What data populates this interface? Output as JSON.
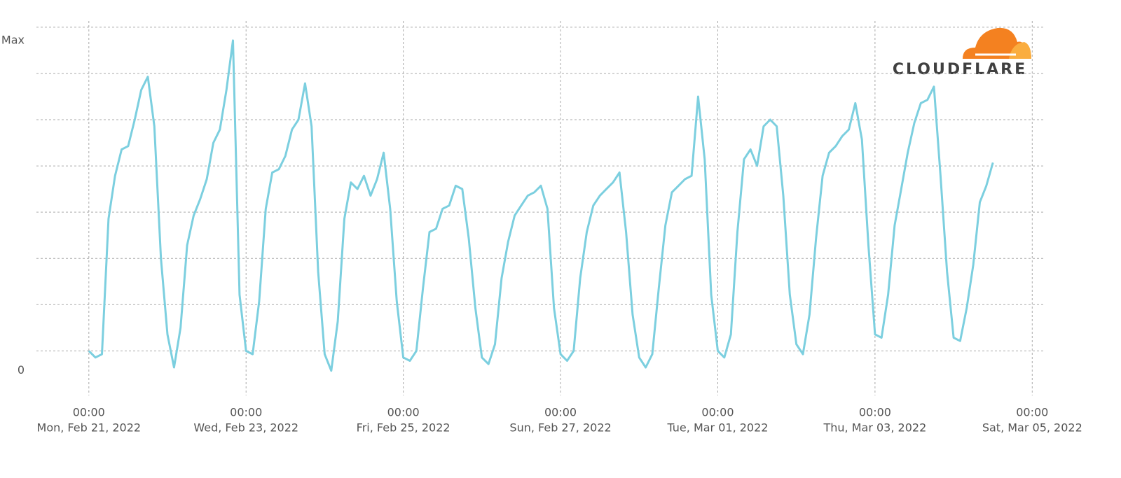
{
  "chart_data": {
    "type": "line",
    "logo": "CLOUDFLARE",
    "x": [
      "2022-02-21T00:00",
      "2022-02-21T02:00",
      "2022-02-21T04:00",
      "2022-02-21T06:00",
      "2022-02-21T08:00",
      "2022-02-21T10:00",
      "2022-02-21T12:00",
      "2022-02-21T14:00",
      "2022-02-21T16:00",
      "2022-02-21T18:00",
      "2022-02-21T20:00",
      "2022-02-21T22:00",
      "2022-02-22T00:00",
      "2022-02-22T02:00",
      "2022-02-22T04:00",
      "2022-02-22T06:00",
      "2022-02-22T08:00",
      "2022-02-22T10:00",
      "2022-02-22T12:00",
      "2022-02-22T14:00",
      "2022-02-22T16:00",
      "2022-02-22T18:00",
      "2022-02-22T20:00",
      "2022-02-22T22:00",
      "2022-02-23T00:00",
      "2022-02-23T02:00",
      "2022-02-23T04:00",
      "2022-02-23T06:00",
      "2022-02-23T08:00",
      "2022-02-23T10:00",
      "2022-02-23T12:00",
      "2022-02-23T14:00",
      "2022-02-23T16:00",
      "2022-02-23T18:00",
      "2022-02-23T20:00",
      "2022-02-23T22:00",
      "2022-02-24T00:00",
      "2022-02-24T02:00",
      "2022-02-24T04:00",
      "2022-02-24T06:00",
      "2022-02-24T08:00",
      "2022-02-24T10:00",
      "2022-02-24T12:00",
      "2022-02-24T14:00",
      "2022-02-24T16:00",
      "2022-02-24T18:00",
      "2022-02-24T20:00",
      "2022-02-24T22:00",
      "2022-02-25T00:00",
      "2022-02-25T02:00",
      "2022-02-25T04:00",
      "2022-02-25T06:00",
      "2022-02-25T08:00",
      "2022-02-25T10:00",
      "2022-02-25T12:00",
      "2022-02-25T14:00",
      "2022-02-25T16:00",
      "2022-02-25T18:00",
      "2022-02-25T20:00",
      "2022-02-25T22:00",
      "2022-02-26T00:00",
      "2022-02-26T02:00",
      "2022-02-26T04:00",
      "2022-02-26T06:00",
      "2022-02-26T08:00",
      "2022-02-26T10:00",
      "2022-02-26T12:00",
      "2022-02-26T14:00",
      "2022-02-26T16:00",
      "2022-02-26T18:00",
      "2022-02-26T20:00",
      "2022-02-26T22:00",
      "2022-02-27T00:00",
      "2022-02-27T02:00",
      "2022-02-27T04:00",
      "2022-02-27T06:00",
      "2022-02-27T08:00",
      "2022-02-27T10:00",
      "2022-02-27T12:00",
      "2022-02-27T14:00",
      "2022-02-27T16:00",
      "2022-02-27T18:00",
      "2022-02-27T20:00",
      "2022-02-27T22:00",
      "2022-02-28T00:00",
      "2022-02-28T02:00",
      "2022-02-28T04:00",
      "2022-02-28T06:00",
      "2022-02-28T08:00",
      "2022-02-28T10:00",
      "2022-02-28T12:00",
      "2022-02-28T14:00",
      "2022-02-28T16:00",
      "2022-02-28T18:00",
      "2022-02-28T20:00",
      "2022-02-28T22:00",
      "2022-03-01T00:00",
      "2022-03-01T02:00",
      "2022-03-01T04:00",
      "2022-03-01T06:00",
      "2022-03-01T08:00",
      "2022-03-01T10:00",
      "2022-03-01T12:00",
      "2022-03-01T14:00",
      "2022-03-01T16:00",
      "2022-03-01T18:00",
      "2022-03-01T20:00",
      "2022-03-01T22:00",
      "2022-03-02T00:00",
      "2022-03-02T02:00",
      "2022-03-02T04:00",
      "2022-03-02T06:00",
      "2022-03-02T08:00",
      "2022-03-02T10:00",
      "2022-03-02T12:00",
      "2022-03-02T14:00",
      "2022-03-02T16:00",
      "2022-03-02T18:00",
      "2022-03-02T20:00",
      "2022-03-02T22:00",
      "2022-03-03T00:00",
      "2022-03-03T02:00",
      "2022-03-03T04:00",
      "2022-03-03T06:00",
      "2022-03-03T08:00",
      "2022-03-03T10:00",
      "2022-03-03T12:00",
      "2022-03-03T14:00",
      "2022-03-03T16:00",
      "2022-03-03T18:00",
      "2022-03-03T20:00",
      "2022-03-03T22:00",
      "2022-03-04T00:00",
      "2022-03-04T02:00",
      "2022-03-04T04:00",
      "2022-03-04T06:00",
      "2022-03-04T08:00",
      "2022-03-04T10:00",
      "2022-03-04T12:00"
    ],
    "series": [
      {
        "color": "#7ccfdf",
        "values": [
          6,
          4,
          5,
          46,
          59,
          67,
          68,
          76,
          85,
          89,
          74,
          34,
          11,
          1,
          13,
          38,
          47,
          52,
          58,
          69,
          73,
          85,
          100,
          23,
          6,
          5,
          21,
          49,
          60,
          61,
          65,
          73,
          76,
          87,
          74,
          30,
          5,
          0,
          15,
          46,
          57,
          55,
          59,
          53,
          58,
          66,
          49,
          21,
          4,
          3,
          6,
          25,
          42,
          43,
          49,
          50,
          56,
          55,
          40,
          19,
          4,
          2,
          8,
          28,
          39,
          47,
          50,
          53,
          54,
          56,
          49,
          19,
          5,
          3,
          6,
          28,
          42,
          50,
          53,
          55,
          57,
          60,
          42,
          17,
          4,
          1,
          5,
          25,
          44,
          54,
          56,
          58,
          59,
          83,
          64,
          23,
          6,
          4,
          11,
          42,
          64,
          67,
          62,
          74,
          76,
          74,
          53,
          23,
          8,
          5,
          17,
          40,
          59,
          66,
          68,
          71,
          73,
          81,
          70,
          38,
          11,
          10,
          23,
          44,
          55,
          66,
          75,
          81,
          82,
          86,
          59,
          30,
          10,
          9,
          19,
          32,
          51,
          56,
          63
        ]
      }
    ],
    "xlim": [
      "2022-02-20T08:00",
      "2022-03-05T04:00"
    ],
    "xticks": [
      {
        "value": "2022-02-21T00:00",
        "label": [
          "00:00",
          "Mon, Feb 21, 2022"
        ]
      },
      {
        "value": "2022-02-23T00:00",
        "label": [
          "00:00",
          "Wed, Feb 23, 2022"
        ]
      },
      {
        "value": "2022-02-25T00:00",
        "label": [
          "00:00",
          "Fri, Feb 25, 2022"
        ]
      },
      {
        "value": "2022-02-27T00:00",
        "label": [
          "00:00",
          "Sun, Feb 27, 2022"
        ]
      },
      {
        "value": "2022-03-01T00:00",
        "label": [
          "00:00",
          "Tue, Mar 01, 2022"
        ]
      },
      {
        "value": "2022-03-03T00:00",
        "label": [
          "00:00",
          "Thu, Mar 03, 2022"
        ]
      },
      {
        "value": "2022-03-05T00:00",
        "label": [
          "00:00",
          "Sat, Mar 05, 2022"
        ]
      }
    ],
    "ylim": [
      -6,
      108
    ],
    "yticks": [
      {
        "value": 0,
        "label": "0"
      },
      {
        "value": 100,
        "label": "Max"
      }
    ],
    "ygrid": [
      6,
      20,
      34,
      48,
      62,
      76,
      90,
      104
    ],
    "grid": true
  }
}
